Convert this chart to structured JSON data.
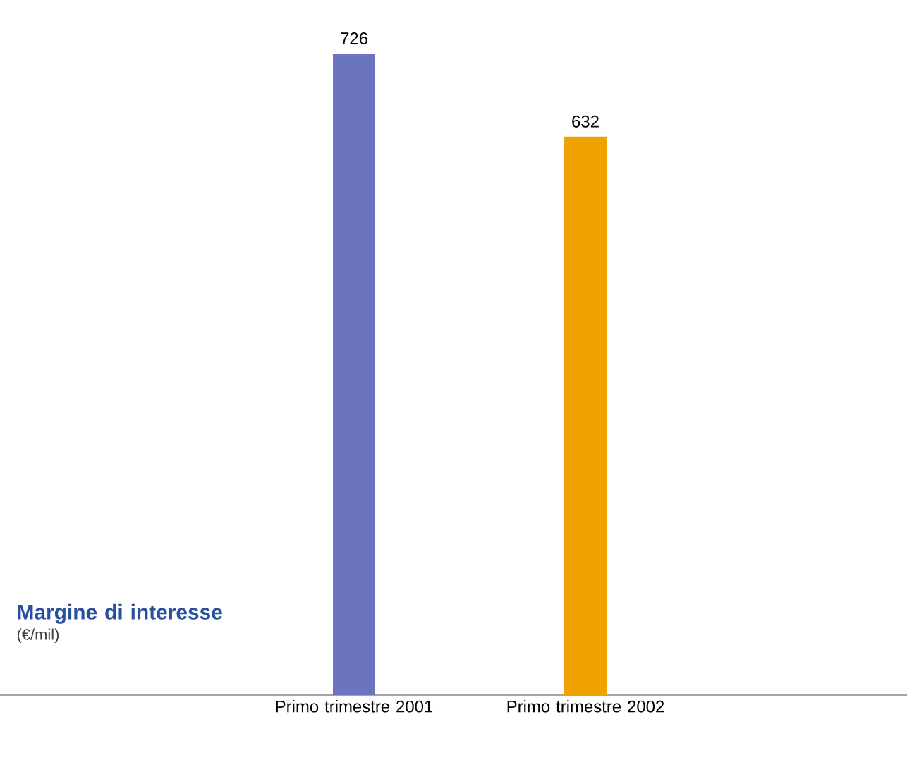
{
  "chart_data": {
    "type": "bar",
    "title": "Margine di interesse",
    "subtitle": "(€/mil)",
    "categories": [
      "Primo trimestre 2001",
      "Primo trimestre 2002"
    ],
    "values": [
      726,
      632
    ],
    "colors": [
      "#6b74bd",
      "#f0a300"
    ],
    "value_labels": [
      "726",
      "632"
    ]
  }
}
